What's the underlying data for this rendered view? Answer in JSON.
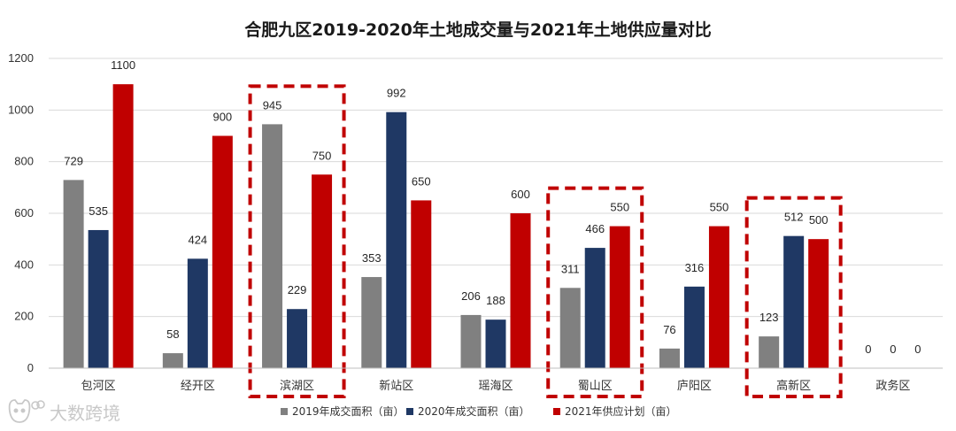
{
  "chart_data": {
    "type": "bar",
    "title": "合肥九区2019-2020年土地成交量与2021年土地供应量对比",
    "categories": [
      "包河区",
      "经开区",
      "滨湖区",
      "新站区",
      "瑶海区",
      "蜀山区",
      "庐阳区",
      "高新区",
      "政务区"
    ],
    "series": [
      {
        "name": "2019年成交面积（亩）",
        "color": "#808080",
        "values": [
          729,
          58,
          945,
          353,
          206,
          311,
          76,
          123,
          0
        ]
      },
      {
        "name": "2020年成交面积（亩）",
        "color": "#1f3864",
        "values": [
          535,
          424,
          229,
          992,
          188,
          466,
          316,
          512,
          0
        ]
      },
      {
        "name": "2021年供应计划（亩）",
        "color": "#c00000",
        "values": [
          1100,
          900,
          750,
          650,
          600,
          550,
          550,
          500,
          0
        ]
      }
    ],
    "yticks": [
      0,
      200,
      400,
      600,
      800,
      1000,
      1200
    ],
    "ylim": [
      0,
      1200
    ],
    "highlighted_categories": [
      "滨湖区",
      "蜀山区",
      "高新区"
    ],
    "highlight_color": "#c00000",
    "legend_position": "bottom",
    "xlabel": "",
    "ylabel": ""
  },
  "watermark": {
    "text": "大数跨境",
    "icon": "cat-logo-icon"
  }
}
